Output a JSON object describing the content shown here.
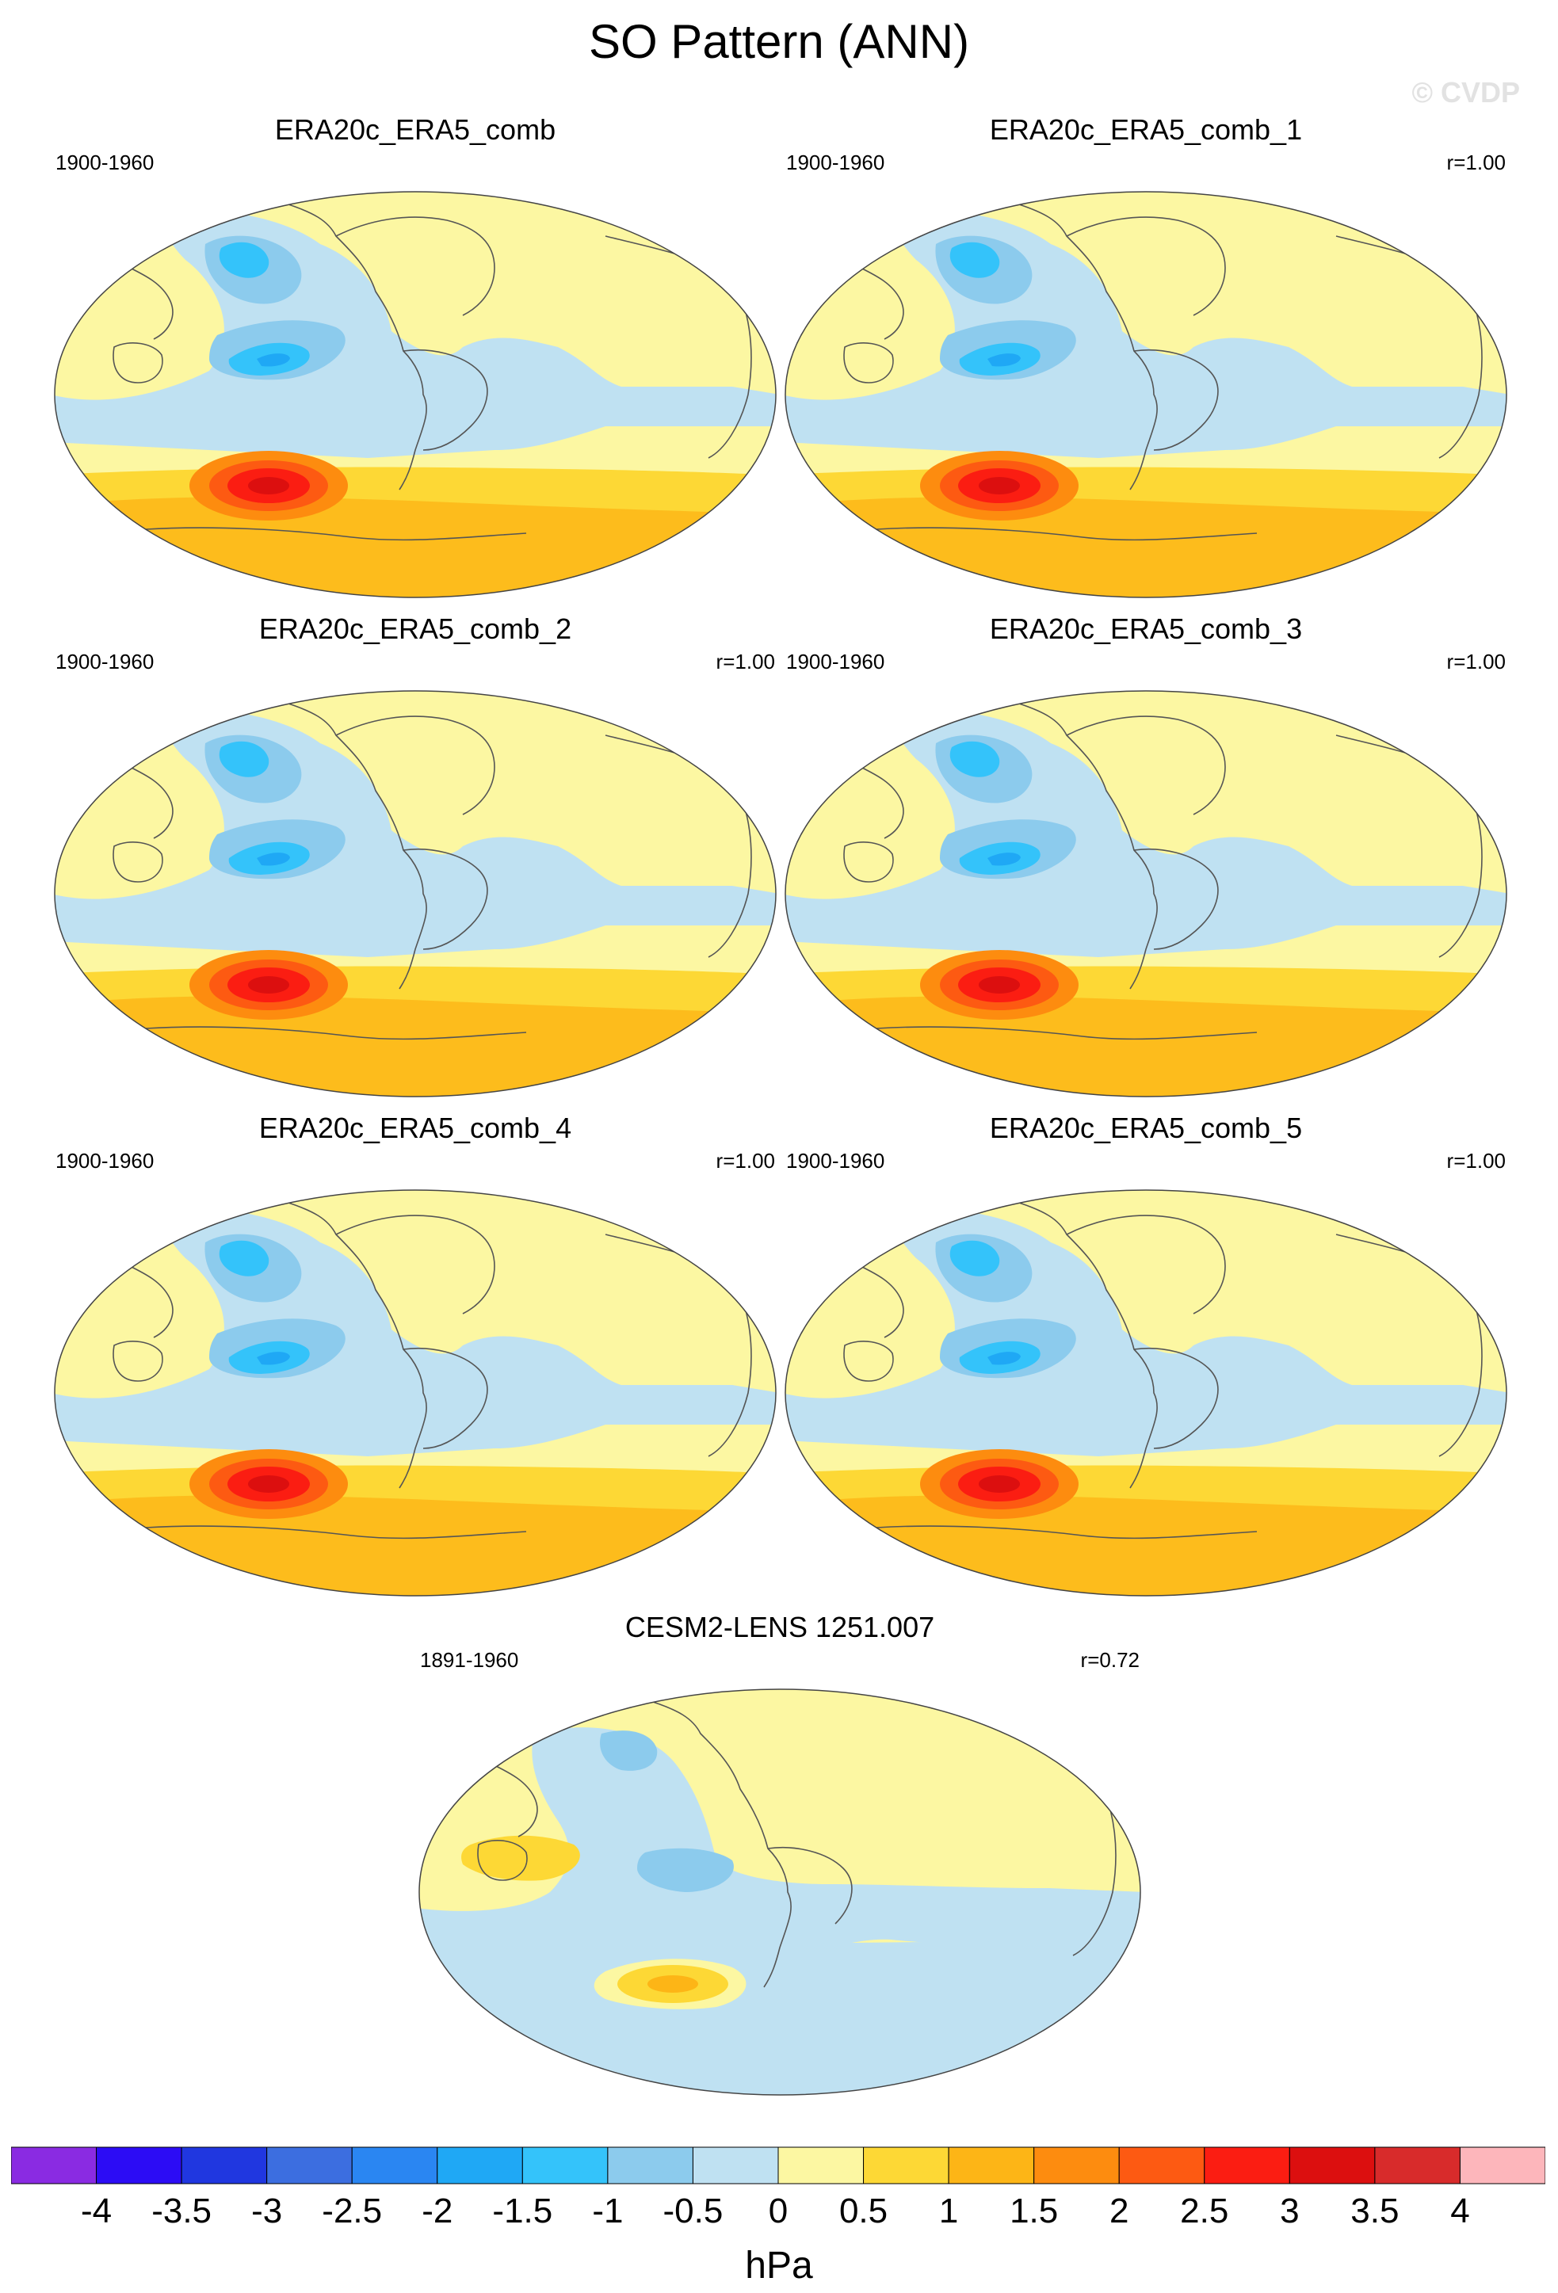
{
  "title": "SO Pattern (ANN)",
  "watermark": "© CVDP",
  "panels": [
    {
      "title": "ERA20c_ERA5_comb",
      "period": "1900-1960",
      "corr": ""
    },
    {
      "title": "ERA20c_ERA5_comb_1",
      "period": "1900-1960",
      "corr": "r=1.00"
    },
    {
      "title": "ERA20c_ERA5_comb_2",
      "period": "1900-1960",
      "corr": "r=1.00"
    },
    {
      "title": "ERA20c_ERA5_comb_3",
      "period": "1900-1960",
      "corr": "r=1.00"
    },
    {
      "title": "ERA20c_ERA5_comb_4",
      "period": "1900-1960",
      "corr": "r=1.00"
    },
    {
      "title": "ERA20c_ERA5_comb_5",
      "period": "1900-1960",
      "corr": "r=1.00"
    },
    {
      "title": "CESM2-LENS 1251.007",
      "period": "1891-1960",
      "corr": "r=0.72"
    }
  ],
  "colorbar": {
    "units": "hPa",
    "labels": [
      "-4",
      "-3.5",
      "-3",
      "-2.5",
      "-2",
      "-1.5",
      "-1",
      "-0.5",
      "0",
      "0.5",
      "1",
      "1.5",
      "2",
      "2.5",
      "3",
      "3.5",
      "4"
    ],
    "colors": [
      "#8a2be2",
      "#2c0cf5",
      "#2037e0",
      "#3c6ee0",
      "#2a86f2",
      "#1fa8f5",
      "#34c3fa",
      "#8ccbed",
      "#bfe1f2",
      "#fcf7a2",
      "#fdd835",
      "#fdb516",
      "#fd8c0f",
      "#fd5a12",
      "#fb1d12",
      "#dc0f0f",
      "#d82b2b",
      "#fdb6bb"
    ]
  },
  "map_colors": {
    "neg_weak": "#bfe1f2",
    "neg_mid": "#8ccbed",
    "neg_strong": "#34c3fa",
    "neg_core": "#1fa8f5",
    "pos_weak": "#fcf7a2",
    "pos_mid": "#fdd835",
    "pos_strong": "#fdb516",
    "pos_hot1": "#fd8c0f",
    "pos_hot2": "#fd5a12",
    "pos_hot3": "#fb1d12",
    "pos_hot4": "#dc0f0f"
  }
}
